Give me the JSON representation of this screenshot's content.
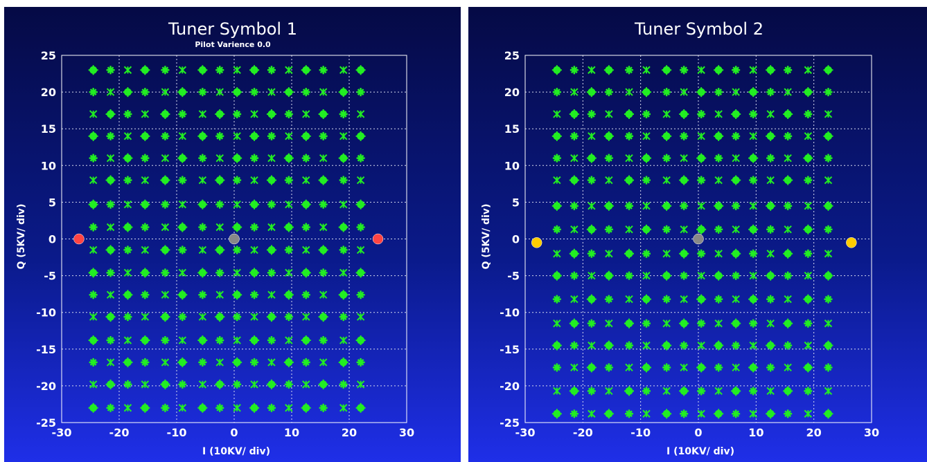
{
  "chart_data": [
    {
      "type": "scatter",
      "title": "Tuner Symbol 1",
      "subtitle": "Pilot Varience 0.0",
      "xlabel": "I (10KV/ div)",
      "ylabel": "Q (5KV/ div)",
      "xlim": [
        -30,
        30
      ],
      "ylim": [
        -25,
        25
      ],
      "xticks": [
        -30,
        -20,
        -10,
        0,
        10,
        20,
        30
      ],
      "yticks": [
        -25,
        -20,
        -15,
        -10,
        -5,
        0,
        5,
        10,
        15,
        20,
        25
      ],
      "grid": true,
      "constellation": {
        "x_levels": [
          -24.5,
          -21.5,
          -18.5,
          -15.5,
          -12,
          -9,
          -5.5,
          -2.5,
          0.5,
          3.5,
          6.5,
          9.5,
          12.5,
          15.5,
          19,
          22
        ],
        "y_levels": [
          23,
          20,
          17,
          14,
          11,
          8,
          4.7,
          1.6,
          -1.5,
          -4.6,
          -7.6,
          -10.6,
          -13.8,
          -16.8,
          -19.8,
          -23
        ],
        "color": "#22ee22"
      },
      "series": [
        {
          "marker": "circle",
          "color": "#ff4444",
          "points": [
            [
              -27,
              0
            ],
            [
              25,
              0
            ]
          ]
        },
        {
          "marker": "circle",
          "color": "#888888",
          "points": [
            [
              0,
              0
            ]
          ]
        }
      ]
    },
    {
      "type": "scatter",
      "title": "Tuner Symbol 2",
      "xlabel": "I (10KV/ div)",
      "ylabel": "Q (5KV/ div)",
      "xlim": [
        -30,
        30
      ],
      "ylim": [
        -25,
        25
      ],
      "xticks": [
        -30,
        -20,
        -10,
        0,
        10,
        20,
        30
      ],
      "yticks": [
        -25,
        -20,
        -15,
        -10,
        -5,
        0,
        5,
        10,
        15,
        20,
        25
      ],
      "grid": true,
      "constellation": {
        "x_levels": [
          -24.5,
          -21.5,
          -18.5,
          -15.5,
          -12,
          -9,
          -5.5,
          -2.5,
          0.5,
          3.5,
          6.5,
          9.5,
          12.5,
          15.5,
          19,
          22.5
        ],
        "y_levels": [
          23,
          20,
          17,
          14,
          11,
          8,
          4.5,
          1.3,
          -2,
          -5,
          -8.2,
          -11.5,
          -14.5,
          -17.5,
          -20.7,
          -23.8
        ],
        "color": "#22ee22"
      },
      "series": [
        {
          "marker": "circle",
          "color": "#ffcc00",
          "points": [
            [
              -28,
              -0.5
            ],
            [
              26.5,
              -0.5
            ]
          ]
        },
        {
          "marker": "circle",
          "color": "#888888",
          "points": [
            [
              0,
              0
            ]
          ]
        }
      ]
    }
  ]
}
